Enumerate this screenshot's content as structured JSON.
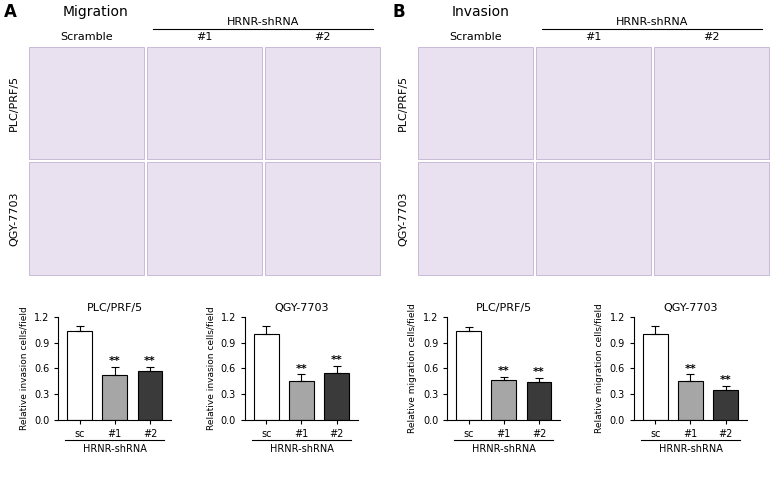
{
  "panels": [
    {
      "label": "A",
      "title": "Migration",
      "group_label": "HRNR-shRNA",
      "columns": [
        "Scramble",
        "#1",
        "#2"
      ],
      "rows": [
        "PLC/PRF/5",
        "QGY-7703"
      ]
    },
    {
      "label": "B",
      "title": "Invasion",
      "group_label": "HRNR-shRNA",
      "columns": [
        "Scramble",
        "#1",
        "#2"
      ],
      "rows": [
        "PLC/PRF/5",
        "QGY-7703"
      ]
    }
  ],
  "chart_data": [
    {
      "type": "bar",
      "title": "PLC/PRF/5",
      "y_label": "Relative invasion cells/field",
      "group_label": "HRNR-shRNA",
      "categories": [
        "sc",
        "#1",
        "#2"
      ],
      "values": [
        1.04,
        0.52,
        0.57
      ],
      "errors": [
        0.05,
        0.1,
        0.05
      ],
      "significance": [
        null,
        "**",
        "**"
      ],
      "colors": [
        "#ffffff",
        "#a6a6a6",
        "#3a3a3a"
      ],
      "ylim": [
        0.0,
        1.2
      ],
      "yticks": [
        0.0,
        0.3,
        0.6,
        0.9,
        1.2
      ]
    },
    {
      "type": "bar",
      "title": "QGY-7703",
      "y_label": "Relative invasion cells/field",
      "group_label": "HRNR-shRNA",
      "categories": [
        "sc",
        "#1",
        "#2"
      ],
      "values": [
        1.0,
        0.45,
        0.55
      ],
      "errors": [
        0.09,
        0.08,
        0.08
      ],
      "significance": [
        null,
        "**",
        "**"
      ],
      "colors": [
        "#ffffff",
        "#a6a6a6",
        "#3a3a3a"
      ],
      "ylim": [
        0.0,
        1.2
      ],
      "yticks": [
        0.0,
        0.3,
        0.6,
        0.9,
        1.2
      ]
    },
    {
      "type": "bar",
      "title": "PLC/PRF/5",
      "y_label": "Relative migration cells/field",
      "group_label": "HRNR-shRNA",
      "categories": [
        "sc",
        "#1",
        "#2"
      ],
      "values": [
        1.03,
        0.47,
        0.44
      ],
      "errors": [
        0.05,
        0.03,
        0.05
      ],
      "significance": [
        null,
        "**",
        "**"
      ],
      "colors": [
        "#ffffff",
        "#a6a6a6",
        "#3a3a3a"
      ],
      "ylim": [
        0.0,
        1.2
      ],
      "yticks": [
        0.0,
        0.3,
        0.6,
        0.9,
        1.2
      ]
    },
    {
      "type": "bar",
      "title": "QGY-7703",
      "y_label": "Relative migration cells/field",
      "group_label": "HRNR-shRNA",
      "categories": [
        "sc",
        "#1",
        "#2"
      ],
      "values": [
        1.0,
        0.45,
        0.35
      ],
      "errors": [
        0.09,
        0.08,
        0.05
      ],
      "significance": [
        null,
        "**",
        "**"
      ],
      "colors": [
        "#ffffff",
        "#a6a6a6",
        "#3a3a3a"
      ],
      "ylim": [
        0.0,
        1.2
      ],
      "yticks": [
        0.0,
        0.3,
        0.6,
        0.9,
        1.2
      ]
    }
  ]
}
